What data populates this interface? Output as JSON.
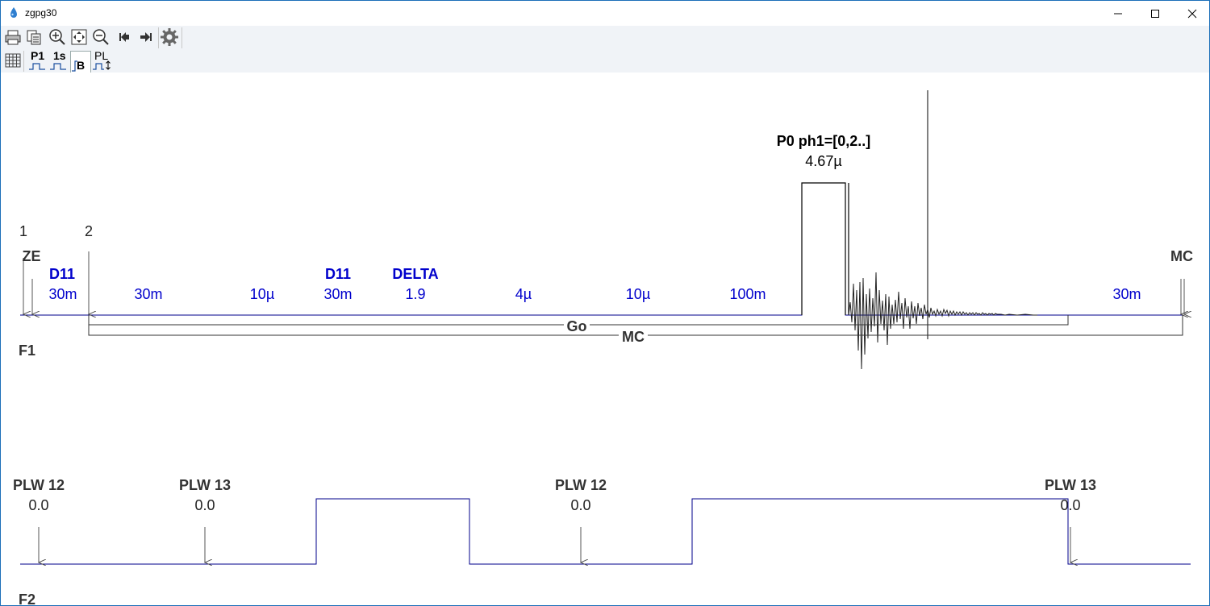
{
  "window": {
    "title": "zgpg30",
    "minimize_icon": "minimize-icon",
    "maximize_icon": "maximize-icon",
    "close_icon": "close-icon"
  },
  "toolbar": {
    "row1": [
      "print-icon",
      "copy-icon",
      "zoom-in-icon",
      "fit-icon",
      "zoom-out-icon",
      "first-icon",
      "next-icon",
      "settings-icon"
    ],
    "row2": {
      "grid_icon": "grid-icon",
      "p1_label": "P1",
      "s1_label": "1s",
      "b_label": "B",
      "pl_label": "PL"
    }
  },
  "pulse_program": {
    "channel_f1": "F1",
    "channel_f2": "F2",
    "marker_1": "1",
    "marker_2": "2",
    "ze": "ZE",
    "mc_top": "MC",
    "f1_names": {
      "d11a": "D11",
      "d11b": "D11",
      "delta": "DELTA"
    },
    "f1_durations": {
      "d1": "30m",
      "d2": "30m",
      "d3": "10µ",
      "d4": "30m",
      "d5": "1.9",
      "d6": "4µ",
      "d7": "10µ",
      "d8": "100m",
      "d9": "30m"
    },
    "pulse_name": "P0 ph1=[0,2..]",
    "pulse_len": "4.67µ",
    "loop_go": "Go",
    "loop_mc": "MC",
    "f2": {
      "plw12a_name": "PLW 12",
      "plw12a_val": "0.0",
      "plw13a_name": "PLW 13",
      "plw13a_val": "0.0",
      "plw12b_name": "PLW 12",
      "plw12b_val": "0.0",
      "plw13b_name": "PLW 13",
      "plw13b_val": "0.0"
    },
    "colors": {
      "baseline": "#00008b",
      "text_blue": "#0000cc",
      "pulse": "#000000"
    }
  }
}
